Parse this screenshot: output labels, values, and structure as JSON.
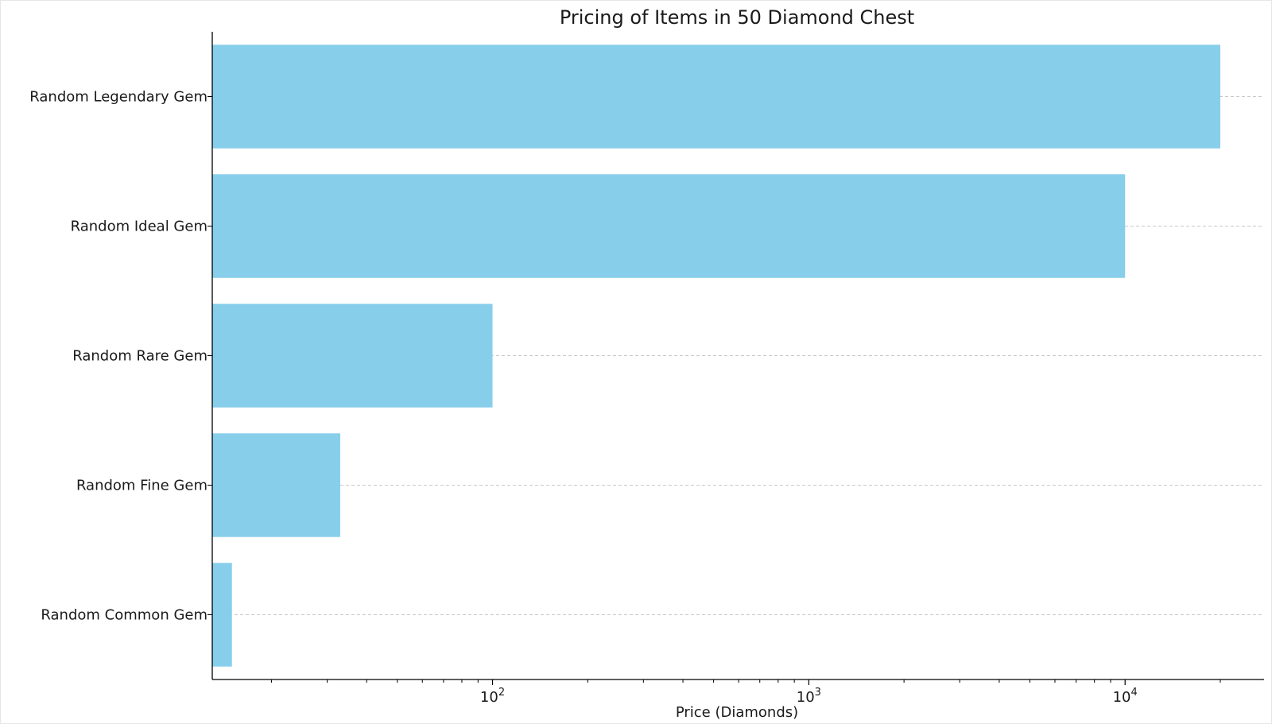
{
  "chart_data": {
    "type": "bar",
    "orientation": "horizontal",
    "title": "Pricing of Items in 50 Diamond Chest",
    "xlabel": "Price (Diamonds)",
    "ylabel": "",
    "x_scale": "log",
    "xlim": [
      13,
      27500
    ],
    "categories": [
      "Random Common Gem",
      "Random Fine Gem",
      "Random Rare Gem",
      "Random Ideal Gem",
      "Random Legendary Gem"
    ],
    "values": [
      15,
      33,
      100,
      10000,
      20000
    ],
    "x_ticks": [
      {
        "value": 100,
        "base": "10",
        "exp": "2"
      },
      {
        "value": 1000,
        "base": "10",
        "exp": "3"
      },
      {
        "value": 10000,
        "base": "10",
        "exp": "4"
      }
    ],
    "bar_color": "#87ceeb",
    "grid": "y dashed",
    "legend": "none"
  }
}
